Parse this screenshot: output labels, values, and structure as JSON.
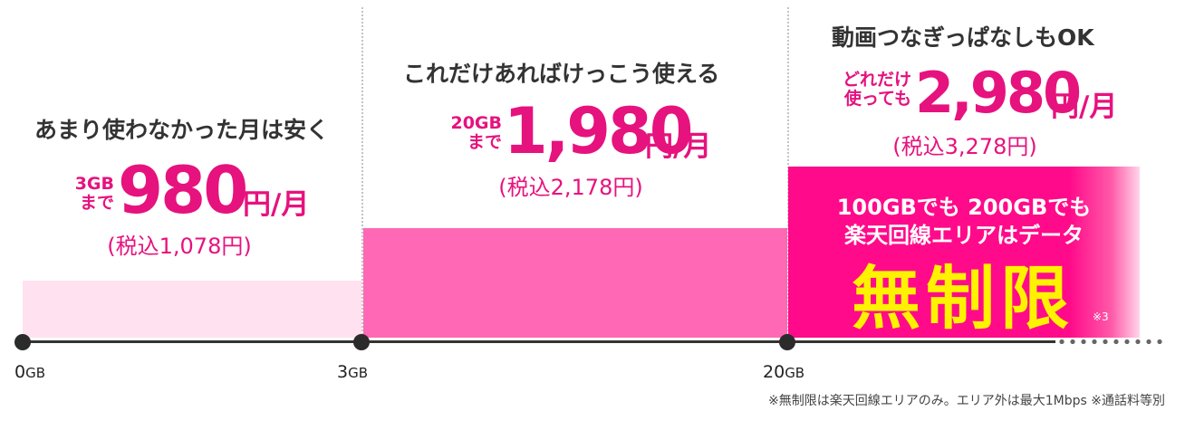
{
  "chart_data": {
    "type": "bar",
    "description_axis": "data usage (GB)",
    "ticks": [
      {
        "value": "0",
        "unit": "GB"
      },
      {
        "value": "3",
        "unit": "GB"
      },
      {
        "value": "20",
        "unit": "GB"
      }
    ],
    "tiers": [
      {
        "heading": "あまり使わなかった月は安く",
        "limit_line1": "3GB",
        "limit_line2": "まで",
        "price": "980",
        "unit": "円/月",
        "tax_included": "(税込1,078円)"
      },
      {
        "heading": "これだけあればけっこう使える",
        "limit_line1": "20GB",
        "limit_line2": "まで",
        "price": "1,980",
        "unit": "円/月",
        "tax_included": "(税込2,178円)"
      },
      {
        "heading": "動画つなぎっぱなしもOK",
        "limit_line1": "どれだけ",
        "limit_line2": "使っても",
        "price": "2,980",
        "unit": "円/月",
        "tax_included": "(税込3,278円)",
        "promo_line1": "100GBでも 200GBでも",
        "promo_line2": "楽天回線エリアはデータ",
        "promo_main": "無制限",
        "promo_note": "※3"
      }
    ],
    "colors": {
      "tier1": "#ffe1ef",
      "tier2": "#ff68b4",
      "tier3": "#ff0a8a",
      "price_text": "#e6127e",
      "unlimited_text": "#fff200"
    }
  },
  "footnote": "※無制限は楽天回線エリアのみ。エリア外は最大1Mbps ※通話料等別"
}
